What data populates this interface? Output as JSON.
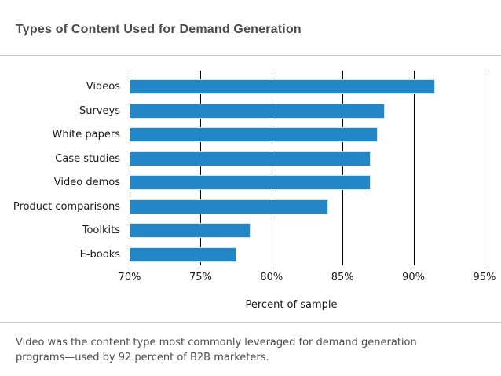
{
  "title": "Types of Content Used for Demand Generation",
  "caption": "Video was the content type most commonly leveraged for demand generation programs—used by 92 percent of B2B marketers.",
  "colors": {
    "bar": "#2386c6",
    "bar_edge": "#cfe8f5",
    "gridline": "#000000",
    "title_text": "#4b4b4d",
    "axis_text": "#1a1a1a",
    "caption_text": "#4d4d4d",
    "divider": "#c9c9c9",
    "background": "#ffffff"
  },
  "chart_data": {
    "type": "bar",
    "orientation": "horizontal",
    "title": "Types of Content Used for Demand Generation",
    "categories": [
      "Videos",
      "Surveys",
      "White papers",
      "Case studies",
      "Video demos",
      "Product comparisons",
      "Toolkits",
      "E-books"
    ],
    "values": [
      91.5,
      88,
      87.5,
      87,
      87,
      84,
      78.5,
      77.5
    ],
    "xlabel": "Percent of sample",
    "ylabel": "",
    "xlim": [
      70,
      95
    ],
    "xticks": [
      70,
      75,
      80,
      85,
      90,
      95
    ],
    "xtick_labels": [
      "70%",
      "75%",
      "80%",
      "85%",
      "90%",
      "95%"
    ],
    "grid": true,
    "legend": false
  }
}
